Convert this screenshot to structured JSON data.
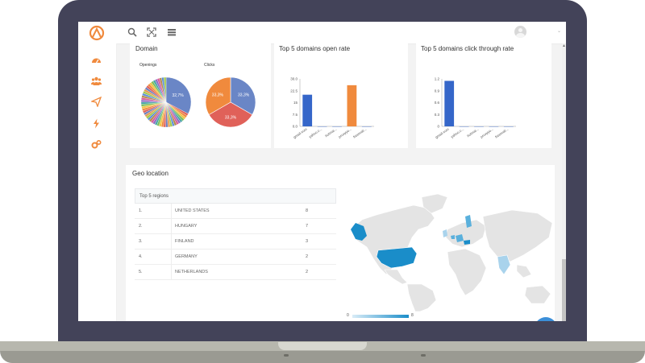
{
  "topbar": {
    "icons": [
      "app-logo-icon",
      "search-icon",
      "fullscreen-icon",
      "menu-list-icon"
    ],
    "caret": "⌄"
  },
  "sidebar": {
    "items": [
      "dashboard-icon",
      "users-icon",
      "send-icon",
      "lightning-icon",
      "settings-icon"
    ]
  },
  "domain_card": {
    "title": "Domain",
    "openings_label": "Openings",
    "clicks_label": "Clicks",
    "openings_label_main": "32,7%",
    "clicks_slices": [
      {
        "value": 33.3,
        "label": "33,3%",
        "color": "#6a86c6"
      },
      {
        "value": 33.3,
        "label": "33,3%",
        "color": "#e06159"
      },
      {
        "value": 33.3,
        "label": "33,3%",
        "color": "#f08a3d"
      }
    ]
  },
  "open_rate_card": {
    "title": "Top 5 domains open rate"
  },
  "click_rate_card": {
    "title": "Top 5 domains click through rate"
  },
  "chart_data": [
    {
      "type": "pie",
      "title": "Openings",
      "values": [
        32.7,
        67.3
      ],
      "labels": [
        "32,7%",
        ""
      ],
      "colors": [
        "#6a86c6",
        "#mixed"
      ]
    },
    {
      "type": "pie",
      "title": "Clicks",
      "values": [
        33.3,
        33.3,
        33.3
      ],
      "labels": [
        "33,3%",
        "33,3%",
        "33,3%"
      ],
      "colors": [
        "#6a86c6",
        "#e06159",
        "#f08a3d"
      ]
    },
    {
      "type": "bar",
      "title": "Top 5 domains open rate",
      "categories": [
        "gmail.com",
        "yahoo.c...",
        "hotmai...",
        "proxyyo...",
        "freemail..."
      ],
      "values": [
        20,
        0,
        0,
        26,
        0
      ],
      "colors": [
        "#3566c9",
        "#3566c9",
        "#3566c9",
        "#f08a3d",
        "#3566c9"
      ],
      "ylim": [
        0,
        30
      ],
      "yticks": [
        "0.0",
        "7.5",
        "15",
        "22.5",
        "30.0"
      ]
    },
    {
      "type": "bar",
      "title": "Top 5 domains click through rate",
      "categories": [
        "gmail.com",
        "yahoo.c...",
        "hotmai...",
        "proxyyo...",
        "freemail..."
      ],
      "values": [
        1.15,
        0,
        0,
        0,
        0
      ],
      "colors": [
        "#3566c9",
        "#3566c9",
        "#3566c9",
        "#3566c9",
        "#3566c9"
      ],
      "ylim": [
        0,
        1.2
      ],
      "yticks": [
        "0",
        "0.3",
        "0.6",
        "0.9",
        "1.2"
      ]
    }
  ],
  "geo": {
    "title": "Geo location",
    "regions_header": "Top 5 regions",
    "rows": [
      {
        "rank": "1.",
        "name": "UNITED STATES",
        "count": "8"
      },
      {
        "rank": "2.",
        "name": "HUNGARY",
        "count": "7"
      },
      {
        "rank": "3.",
        "name": "FINLAND",
        "count": "3"
      },
      {
        "rank": "4.",
        "name": "GERMANY",
        "count": "2"
      },
      {
        "rank": "5.",
        "name": "NETHERLANDS",
        "count": "2"
      }
    ],
    "legend_min": "0",
    "legend_max": "8",
    "map_colors": {
      "land": "#e4e4e4",
      "high": "#1a8dc9",
      "mid": "#5ab0dc",
      "low": "#a9d3ec"
    }
  }
}
